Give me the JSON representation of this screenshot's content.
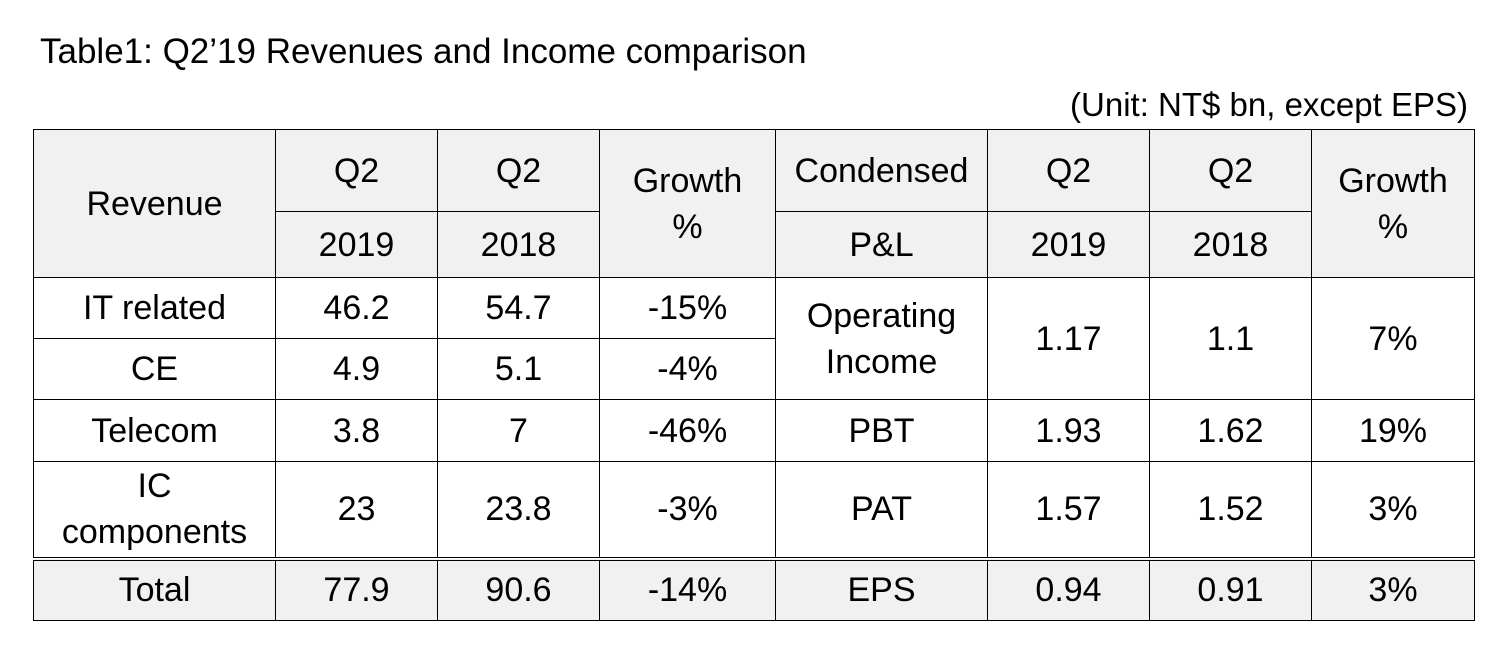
{
  "title": "Table1: Q2’19 Revenues and Income comparison",
  "unit_note": "(Unit: NT$ bn, except EPS)",
  "header": {
    "revenue": "Revenue",
    "q2_a": "Q2",
    "year_2019": "2019",
    "q2_b": "Q2",
    "year_2018": "2018",
    "growth_line1": "Growth",
    "growth_line2": "%",
    "condensed": "Condensed",
    "pl": "P&L",
    "q2_c": "Q2",
    "year_2019_b": "2019",
    "q2_d": "Q2",
    "year_2018_b": "2018",
    "growth2_line1": "Growth",
    "growth2_line2": "%"
  },
  "revenue_rows": [
    {
      "label": "IT related",
      "q2_2019": "46.2",
      "q2_2018": "54.7",
      "growth": "-15%"
    },
    {
      "label": "CE",
      "q2_2019": "4.9",
      "q2_2018": "5.1",
      "growth": "-4%"
    },
    {
      "label": "Telecom",
      "q2_2019": "3.8",
      "q2_2018": "7",
      "growth": "-46%"
    },
    {
      "label_line1": "IC",
      "label_line2": "components",
      "q2_2019": "23",
      "q2_2018": "23.8",
      "growth": "-3%"
    },
    {
      "label": "Total",
      "q2_2019": "77.9",
      "q2_2018": "90.6",
      "growth": "-14%"
    }
  ],
  "pl_rows": [
    {
      "label_line1": "Operating",
      "label_line2": "Income",
      "q2_2019": "1.17",
      "q2_2018": "1.1",
      "growth": "7%"
    },
    {
      "label": "PBT",
      "q2_2019": "1.93",
      "q2_2018": "1.62",
      "growth": "19%"
    },
    {
      "label": "PAT",
      "q2_2019": "1.57",
      "q2_2018": "1.52",
      "growth": "3%"
    },
    {
      "label": "EPS",
      "q2_2019": "0.94",
      "q2_2018": "0.91",
      "growth": "3%"
    }
  ]
}
